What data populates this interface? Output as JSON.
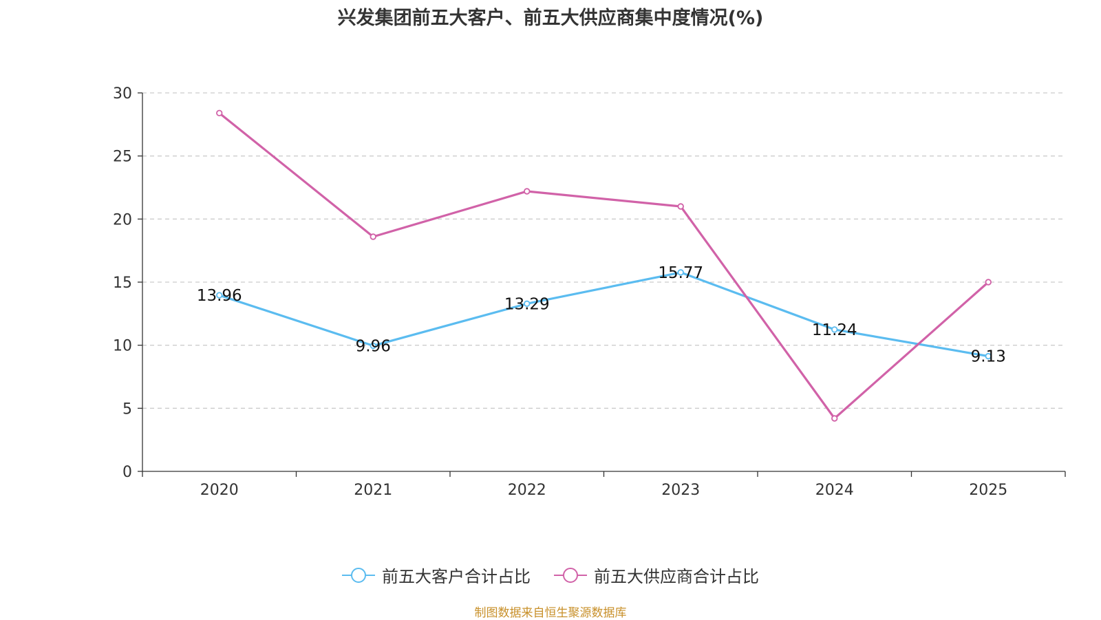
{
  "chart_data": {
    "type": "line",
    "title": "兴发集团前五大客户、前五大供应商集中度情况(%)",
    "categories": [
      "2020",
      "2021",
      "2022",
      "2023",
      "2024",
      "2025"
    ],
    "ylim": [
      0,
      30
    ],
    "yticks": [
      0,
      5,
      10,
      15,
      20,
      25,
      30
    ],
    "grid": true,
    "legend_position": "bottom",
    "series": [
      {
        "name": "前五大客户合计占比",
        "color": "#5bbcf0",
        "values": [
          13.96,
          9.96,
          13.29,
          15.77,
          11.24,
          9.13
        ],
        "labels": [
          "13.96",
          "9.96",
          "13.29",
          "15.77",
          "11.24",
          "9.13"
        ],
        "show_labels": true
      },
      {
        "name": "前五大供应商合计占比",
        "color": "#d162a8",
        "values": [
          28.4,
          18.6,
          22.2,
          21.0,
          4.2,
          15.0
        ],
        "show_labels": false
      }
    ]
  },
  "source_note": "制图数据来自恒生聚源数据库"
}
